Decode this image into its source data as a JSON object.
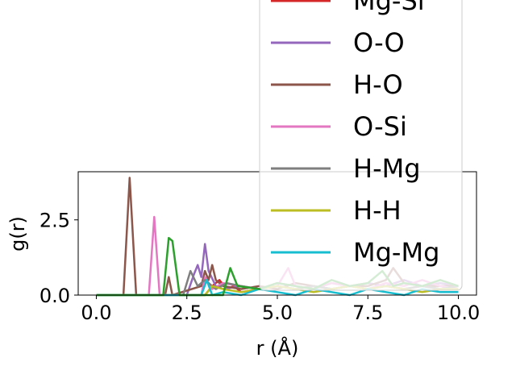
{
  "chart_data": {
    "type": "line",
    "xlabel": "r (Å)",
    "ylabel": "g(r)",
    "xlim": [
      -0.5,
      10.5
    ],
    "ylim": [
      0,
      4.1
    ],
    "xticks": [
      "0.0",
      "2.5",
      "5.0",
      "7.5",
      "10.0"
    ],
    "yticks": [
      "0.0",
      "2.5"
    ],
    "grid": false,
    "legend_placement": "top-right",
    "series": [
      {
        "name": "Mg-Si",
        "color": "#d62728",
        "x": [
          0,
          3.0,
          3.2,
          3.4,
          3.6,
          3.8,
          4.0,
          4.5,
          5.0,
          5.5,
          6.0,
          6.5,
          7.0,
          7.5,
          8.0,
          8.5,
          9.0,
          9.5,
          10.0
        ],
        "y": [
          0,
          0,
          0.3,
          0.5,
          0.2,
          0.3,
          0.1,
          0.2,
          0.3,
          0.2,
          0.3,
          0.2,
          0.3,
          0.2,
          0.3,
          0.2,
          0.3,
          0.2,
          0.3
        ]
      },
      {
        "name": "O-O",
        "color": "#9467bd",
        "x": [
          0,
          2.5,
          2.7,
          2.8,
          2.9,
          3.0,
          3.1,
          3.3,
          3.5,
          4.0,
          4.5,
          5.0,
          5.5,
          6.0,
          6.5,
          7.0,
          7.5,
          8.0,
          8.5,
          9.0,
          9.5,
          10.0
        ],
        "y": [
          0,
          0,
          0.7,
          1.0,
          0.6,
          1.7,
          0.8,
          0.3,
          0.2,
          0.3,
          0.2,
          0.4,
          0.3,
          0.2,
          0.4,
          0.3,
          0.4,
          0.3,
          0.5,
          0.3,
          0.4,
          0.3
        ]
      },
      {
        "name": "H-O",
        "color": "#8c564b",
        "x": [
          0,
          0.75,
          0.92,
          1.1,
          1.9,
          2.0,
          2.1,
          2.9,
          3.0,
          3.1,
          3.2,
          3.3,
          3.5,
          4.0,
          4.5,
          5.0,
          5.5,
          6.0,
          6.5,
          7.0,
          7.5,
          8.0,
          8.2,
          8.5,
          9.0,
          9.5,
          10.0
        ],
        "y": [
          0,
          0,
          3.9,
          0,
          0,
          0.6,
          0,
          0.3,
          0.8,
          0.5,
          1.0,
          0.5,
          0.3,
          0.2,
          0.3,
          0.2,
          0.4,
          0.3,
          0.2,
          0.3,
          0.3,
          0.5,
          0.9,
          0.4,
          0.3,
          0.3,
          0.3
        ]
      },
      {
        "name": "O-Si",
        "color": "#e377c2",
        "x": [
          0,
          1.45,
          1.6,
          1.75,
          2.9,
          3.0,
          3.2,
          3.5,
          4.0,
          4.5,
          5.0,
          5.3,
          5.5,
          6.0,
          6.5,
          7.0,
          7.5,
          8.0,
          8.5,
          9.0,
          9.5,
          10.0
        ],
        "y": [
          0,
          0,
          2.6,
          0,
          0,
          0.6,
          0.2,
          0.4,
          0.3,
          0.2,
          0.3,
          0.9,
          0.3,
          0.2,
          0.4,
          0.3,
          0.2,
          0.4,
          0.3,
          0.5,
          0.3,
          0.2
        ]
      },
      {
        "name": "H-Mg",
        "color": "#7f7f7f",
        "x": [
          0,
          2.4,
          2.6,
          2.8,
          3.0,
          3.3,
          3.6,
          4.0,
          4.5,
          5.0,
          5.5,
          6.0,
          6.5,
          7.0,
          7.5,
          8.0,
          8.5,
          9.0,
          9.5,
          10.0
        ],
        "y": [
          0,
          0,
          0.8,
          0.3,
          0.5,
          0.2,
          0.4,
          0.3,
          0.2,
          0.3,
          0.2,
          0.3,
          0.2,
          0.3,
          0.2,
          0.3,
          0.2,
          0.3,
          0.2,
          0.3
        ]
      },
      {
        "name": "H-H",
        "color": "#bcbd22",
        "x": [
          0,
          3.0,
          3.2,
          3.5,
          4.0,
          4.5,
          5.0,
          5.5,
          6.0,
          6.5,
          7.0,
          7.5,
          8.0,
          8.5,
          9.0,
          9.5,
          10.0
        ],
        "y": [
          0,
          0,
          0.3,
          0.2,
          0.1,
          0.2,
          0.3,
          0.2,
          0.1,
          0.2,
          0.3,
          0.2,
          0.3,
          0.2,
          0.1,
          0.2,
          0.2
        ]
      },
      {
        "name": "Mg-Mg",
        "color": "#17becf",
        "x": [
          0,
          2.9,
          3.05,
          3.2,
          3.5,
          4.0,
          4.5,
          5.0,
          5.5,
          6.0,
          6.5,
          7.0,
          7.5,
          8.0,
          8.5,
          9.0,
          9.5,
          10.0
        ],
        "y": [
          0,
          0,
          0.5,
          0,
          0.1,
          0,
          0.2,
          0.1,
          0,
          0.2,
          0.1,
          0,
          0.2,
          0.1,
          0,
          0.2,
          0.1,
          0.1
        ]
      },
      {
        "name": "",
        "color": "#2ca02c",
        "x": [
          0,
          1.85,
          2.0,
          2.1,
          2.3,
          3.5,
          3.7,
          3.9,
          4.5,
          5.0,
          5.5,
          6.0,
          6.5,
          7.0,
          7.5,
          7.9,
          8.2,
          8.5,
          9.0,
          9.5,
          10.0
        ],
        "y": [
          0,
          0,
          1.9,
          1.8,
          0,
          0,
          0.9,
          0.3,
          0.2,
          0.4,
          0.3,
          0.2,
          0.5,
          0.3,
          0.4,
          0.8,
          0.3,
          0.4,
          0.3,
          0.5,
          0.3
        ]
      }
    ]
  }
}
